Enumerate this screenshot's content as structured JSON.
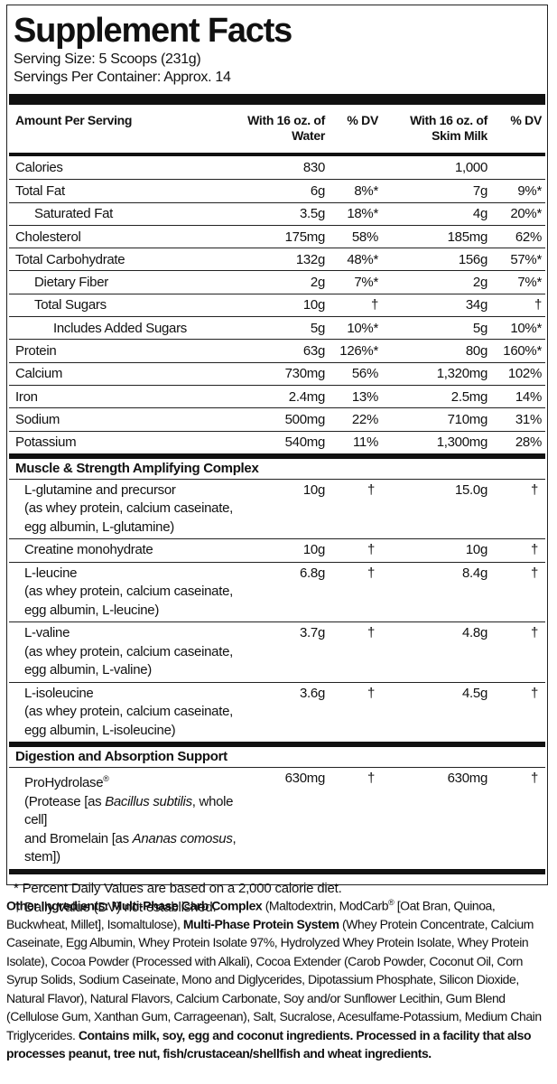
{
  "header": {
    "title": "Supplement Facts",
    "serving_size": "Serving Size: 5 Scoops (231g)",
    "servings_per_container": "Servings Per Container: Approx. 14"
  },
  "table": {
    "columns": [
      "Amount Per Serving",
      "With 16 oz. of Water",
      "% DV",
      "With 16 oz. of Skim Milk",
      "% DV"
    ],
    "nutrients": [
      {
        "name": "Calories",
        "indent": 0,
        "water": "830",
        "milk": "1,000"
      },
      {
        "name": "Total Fat",
        "indent": 0,
        "water": "6g",
        "water_dv": "8%*",
        "milk": "7g",
        "milk_dv": "9%*"
      },
      {
        "name": "Saturated Fat",
        "indent": 1,
        "water": "3.5g",
        "water_dv": "18%*",
        "milk": "4g",
        "milk_dv": "20%*"
      },
      {
        "name": "Cholesterol",
        "indent": 0,
        "water": "175mg",
        "water_dv": "58%",
        "milk": "185mg",
        "milk_dv": "62%"
      },
      {
        "name": "Total Carbohydrate",
        "indent": 0,
        "water": "132g",
        "water_dv": "48%*",
        "milk": "156g",
        "milk_dv": "57%*"
      },
      {
        "name": "Dietary Fiber",
        "indent": 1,
        "water": "2g",
        "water_dv": "7%*",
        "milk": "2g",
        "milk_dv": "7%*"
      },
      {
        "name": "Total Sugars",
        "indent": 1,
        "water": "10g",
        "water_dv": "†",
        "milk": "34g",
        "milk_dv": "†"
      },
      {
        "name": "Includes Added Sugars",
        "indent": 2,
        "water": "5g",
        "water_dv": "10%*",
        "milk": "5g",
        "milk_dv": "10%*"
      },
      {
        "name": "Protein",
        "indent": 0,
        "water": "63g",
        "water_dv": "126%*",
        "milk": "80g",
        "milk_dv": "160%*"
      },
      {
        "name": "Calcium",
        "indent": 0,
        "water": "730mg",
        "water_dv": "56%",
        "milk": "1,320mg",
        "milk_dv": "102%"
      },
      {
        "name": "Iron",
        "indent": 0,
        "water": "2.4mg",
        "water_dv": "13%",
        "milk": "2.5mg",
        "milk_dv": "14%"
      },
      {
        "name": "Sodium",
        "indent": 0,
        "water": "500mg",
        "water_dv": "22%",
        "milk": "710mg",
        "milk_dv": "31%"
      },
      {
        "name": "Potassium",
        "indent": 0,
        "water": "540mg",
        "water_dv": "11%",
        "milk": "1,300mg",
        "milk_dv": "28%"
      }
    ],
    "sections": [
      {
        "title": "Muscle & Strength Amplifying Complex",
        "rows": [
          {
            "name": "L-glutamine and precursor",
            "detail": [
              "(as whey protein, calcium caseinate,",
              "egg albumin, L-glutamine)"
            ],
            "water": "10g",
            "water_dv": "†",
            "milk": "15.0g",
            "milk_dv": "†"
          },
          {
            "name": "Creatine monohydrate",
            "water": "10g",
            "water_dv": "†",
            "milk": "10g",
            "milk_dv": "†"
          },
          {
            "name": "L-leucine",
            "detail": [
              "(as whey protein, calcium caseinate,",
              "egg albumin, L-leucine)"
            ],
            "water": "6.8g",
            "water_dv": "†",
            "milk": "8.4g",
            "milk_dv": "†"
          },
          {
            "name": "L-valine",
            "detail": [
              "(as whey protein, calcium caseinate,",
              "egg albumin, L-valine)"
            ],
            "water": "3.7g",
            "water_dv": "†",
            "milk": "4.8g",
            "milk_dv": "†"
          },
          {
            "name": "L-isoleucine",
            "detail": [
              "(as whey protein, calcium caseinate,",
              "egg albumin, L-isoleucine)"
            ],
            "water": "3.6g",
            "water_dv": "†",
            "milk": "4.5g",
            "milk_dv": "†"
          }
        ]
      },
      {
        "title": "Digestion and Absorption Support",
        "rows": [
          {
            "name": [
              {
                "text": "ProHydrolase"
              },
              {
                "text": "®",
                "style": "sup"
              }
            ],
            "detail": [
              [
                {
                  "text": "(Protease [as "
                },
                {
                  "text": "Bacillus subtilis",
                  "style": "italic"
                },
                {
                  "text": ", whole cell]"
                }
              ],
              [
                {
                  "text": "and Bromelain [as "
                },
                {
                  "text": "Ananas comosus",
                  "style": "italic"
                },
                {
                  "text": ", stem])"
                }
              ]
            ],
            "water": "630mg",
            "water_dv": "†",
            "milk": "630mg",
            "milk_dv": "†"
          }
        ]
      }
    ]
  },
  "footnotes": [
    "* Percent Daily Values are based on a 2,000 calorie diet.",
    "† Daily Value (DV) not established."
  ],
  "other_ingredients": [
    {
      "text": "Other Ingredients: Multi-Phase Carb Complex",
      "style": "bold"
    },
    {
      "text": " (Maltodextrin, ModCarb"
    },
    {
      "text": "®",
      "style": "sup"
    },
    {
      "text": " [Oat Bran, Quinoa, Buckwheat, Millet], Isomaltulose), "
    },
    {
      "text": "Multi-Phase Protein System",
      "style": "bold"
    },
    {
      "text": " (Whey Protein Concentrate, Calcium Caseinate, Egg Albumin, Whey Protein Isolate 97%, Hydrolyzed Whey Protein Isolate, Whey Protein Isolate), Cocoa Powder (Processed with Alkali), Cocoa Extender (Carob Powder, Coconut Oil, Corn Syrup Solids, Sodium Caseinate, Mono and Diglycerides, Dipotassium Phosphate, Silicon Dioxide, Natural Flavor), Natural Flavors, Calcium Carbonate, Soy and/or Sunflower Lecithin, Gum Blend (Cellulose Gum, Xanthan Gum, Carrageenan), Salt, Sucralose, Acesulfame-Potassium, Medium Chain Triglycerides. "
    },
    {
      "text": "Contains milk, soy, egg and coconut ingredients. Processed in a facility that also processes peanut, tree nut, fish/crustacean/shellfish and wheat ingredients.",
      "style": "bold"
    }
  ]
}
